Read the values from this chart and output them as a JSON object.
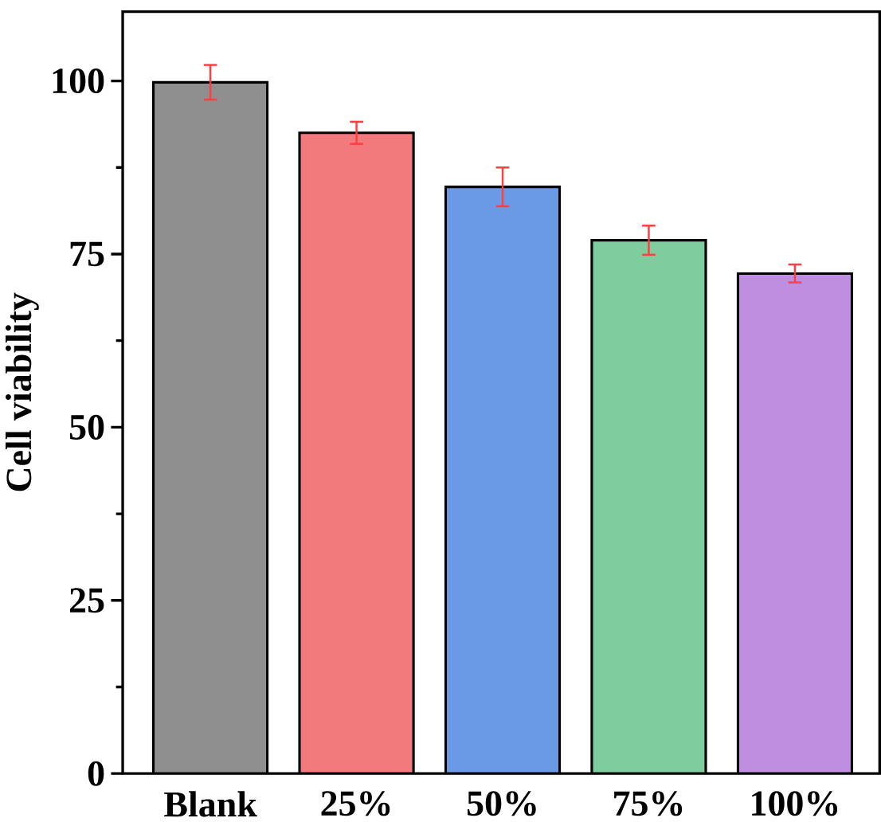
{
  "chart_data": {
    "type": "bar",
    "ylabel": "Cell viability",
    "categories": [
      "Blank",
      "25%",
      "50%",
      "75%",
      "100%"
    ],
    "values": [
      99.8,
      92.5,
      84.7,
      77.0,
      72.2
    ],
    "errors": [
      2.5,
      1.6,
      2.8,
      2.1,
      1.3
    ],
    "colors": [
      "#8f8f8f",
      "#f27a7d",
      "#6a9ae6",
      "#7fcc9e",
      "#c08ee0"
    ],
    "ylim": [
      0,
      110
    ],
    "yticks": [
      0,
      25,
      50,
      75,
      100
    ]
  }
}
